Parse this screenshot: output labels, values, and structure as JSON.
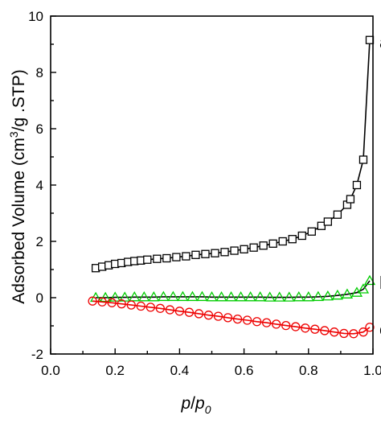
{
  "chart_data": {
    "type": "scatter",
    "title": "",
    "xlabel": {
      "p": "p",
      "slash": "/",
      "p0": "p",
      "sub": "0"
    },
    "ylabel": {
      "pre": "Adsorbed Volume (cm",
      "sup": "3",
      "post": "/g .STP)"
    },
    "xlim": [
      0.0,
      1.0
    ],
    "ylim": [
      -2,
      10
    ],
    "x_ticks": [
      "0.0",
      "0.2",
      "0.4",
      "0.6",
      "0.8",
      "1.0"
    ],
    "y_ticks": [
      "-2",
      "0",
      "2",
      "4",
      "6",
      "8",
      "10"
    ],
    "x_tick_values": [
      0.0,
      0.2,
      0.4,
      0.6,
      0.8,
      1.0
    ],
    "y_tick_values": [
      -2,
      0,
      2,
      4,
      6,
      8,
      10
    ],
    "grid": false,
    "series": [
      {
        "label": "a",
        "marker": "square",
        "color": "#000000",
        "line_color": "#000000",
        "x": [
          0.14,
          0.16,
          0.18,
          0.2,
          0.22,
          0.24,
          0.26,
          0.28,
          0.3,
          0.33,
          0.36,
          0.39,
          0.42,
          0.45,
          0.48,
          0.51,
          0.54,
          0.57,
          0.6,
          0.63,
          0.66,
          0.69,
          0.72,
          0.75,
          0.78,
          0.81,
          0.84,
          0.86,
          0.89,
          0.92,
          0.93,
          0.95,
          0.97,
          0.99
        ],
        "y": [
          1.05,
          1.1,
          1.15,
          1.2,
          1.23,
          1.27,
          1.3,
          1.32,
          1.35,
          1.38,
          1.4,
          1.44,
          1.47,
          1.52,
          1.55,
          1.58,
          1.62,
          1.67,
          1.72,
          1.78,
          1.85,
          1.92,
          2.0,
          2.08,
          2.2,
          2.35,
          2.55,
          2.7,
          2.95,
          3.3,
          3.5,
          4.0,
          4.9,
          9.15
        ]
      },
      {
        "label": "b",
        "marker": "triangle",
        "color": "#00cc00",
        "line_color": "#000000",
        "x": [
          0.14,
          0.17,
          0.2,
          0.23,
          0.26,
          0.29,
          0.32,
          0.35,
          0.38,
          0.41,
          0.44,
          0.47,
          0.5,
          0.53,
          0.56,
          0.59,
          0.62,
          0.65,
          0.68,
          0.71,
          0.74,
          0.77,
          0.8,
          0.83,
          0.86,
          0.89,
          0.92,
          0.95,
          0.97,
          0.99
        ],
        "y": [
          0.0,
          0.0,
          0.01,
          0.01,
          0.02,
          0.02,
          0.02,
          0.03,
          0.03,
          0.03,
          0.03,
          0.03,
          0.02,
          0.02,
          0.02,
          0.02,
          0.02,
          0.02,
          0.01,
          0.01,
          0.01,
          0.02,
          0.02,
          0.03,
          0.05,
          0.08,
          0.12,
          0.18,
          0.3,
          0.6
        ]
      },
      {
        "label": "c",
        "marker": "circle",
        "color": "#ee0000",
        "line_color": "#ee0000",
        "x": [
          0.13,
          0.16,
          0.19,
          0.22,
          0.25,
          0.28,
          0.31,
          0.34,
          0.37,
          0.4,
          0.43,
          0.46,
          0.49,
          0.52,
          0.55,
          0.58,
          0.61,
          0.64,
          0.67,
          0.7,
          0.73,
          0.76,
          0.79,
          0.82,
          0.85,
          0.88,
          0.91,
          0.94,
          0.97,
          0.99
        ],
        "y": [
          -0.12,
          -0.15,
          -0.18,
          -0.22,
          -0.26,
          -0.3,
          -0.34,
          -0.38,
          -0.43,
          -0.48,
          -0.52,
          -0.57,
          -0.62,
          -0.66,
          -0.71,
          -0.76,
          -0.8,
          -0.85,
          -0.89,
          -0.94,
          -0.99,
          -1.03,
          -1.08,
          -1.12,
          -1.17,
          -1.22,
          -1.27,
          -1.28,
          -1.22,
          -1.05
        ]
      }
    ]
  }
}
